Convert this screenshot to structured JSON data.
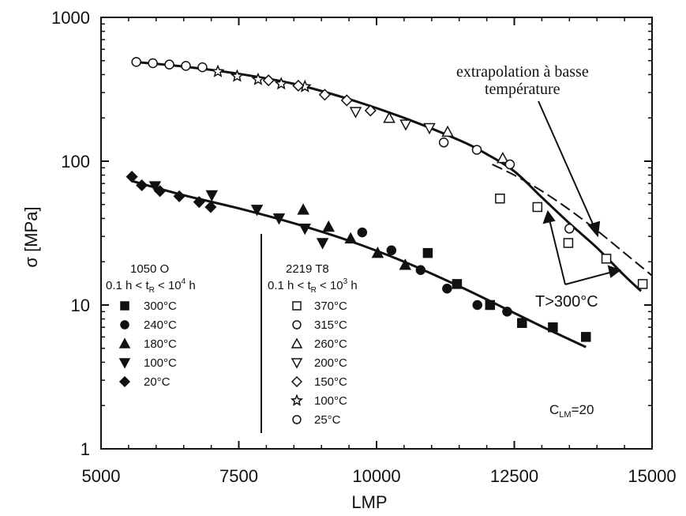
{
  "chart_data": {
    "type": "scatter",
    "title": "",
    "xlabel": "LMP",
    "ylabel": "σ [MPa]",
    "xlim": [
      5000,
      15000
    ],
    "ylim": [
      1,
      1000
    ],
    "y_scale": "log",
    "x_ticks": [
      5000,
      7500,
      10000,
      12500,
      15000
    ],
    "x_tick_labels": [
      "5000",
      "7500",
      "10000",
      "12500",
      "15000"
    ],
    "y_ticks": [
      1,
      10,
      100,
      1000
    ],
    "y_tick_labels": [
      "1",
      "10",
      "100",
      "1000"
    ],
    "legend_1050": {
      "title": "1050 O",
      "condition": {
        "left": "0.1 h < t",
        "sub": "R",
        "right": " < 10",
        "sup": "4",
        "tail": " h"
      },
      "entries": [
        {
          "marker": "square-filled",
          "label": "300°C"
        },
        {
          "marker": "circle-filled",
          "label": "240°C"
        },
        {
          "marker": "triangle-up-filled",
          "label": "180°C"
        },
        {
          "marker": "triangle-down-filled",
          "label": "100°C"
        },
        {
          "marker": "diamond-filled",
          "label": "20°C"
        }
      ]
    },
    "legend_2219": {
      "title": "2219 T8",
      "condition": {
        "left": "0.1 h < t",
        "sub": "R",
        "right": " < 10",
        "sup": "3",
        "tail": " h"
      },
      "entries": [
        {
          "marker": "square-open",
          "label": "370°C"
        },
        {
          "marker": "circle-open",
          "label": "315°C"
        },
        {
          "marker": "triangle-up-open",
          "label": "260°C"
        },
        {
          "marker": "triangle-down-open",
          "label": "200°C"
        },
        {
          "marker": "diamond-open",
          "label": "150°C"
        },
        {
          "marker": "star-open",
          "label": "100°C"
        },
        {
          "marker": "circle-open",
          "label": "25°C"
        }
      ]
    },
    "annotations": {
      "extrapolation_line1": "extrapolation à basse",
      "extrapolation_line2": "température",
      "t_label": "T>300°C",
      "clm_main": "C",
      "clm_sub": "LM",
      "clm_value": "=20"
    },
    "series": [
      {
        "name": "1050 O",
        "points": [
          {
            "m": "diamond-filled",
            "x": 5560,
            "y": 78
          },
          {
            "m": "diamond-filled",
            "x": 5740,
            "y": 68
          },
          {
            "m": "diamond-filled",
            "x": 6070,
            "y": 62
          },
          {
            "m": "diamond-filled",
            "x": 6420,
            "y": 57
          },
          {
            "m": "diamond-filled",
            "x": 6780,
            "y": 52
          },
          {
            "m": "diamond-filled",
            "x": 6990,
            "y": 48
          },
          {
            "m": "triangle-down-filled",
            "x": 5980,
            "y": 67
          },
          {
            "m": "triangle-down-filled",
            "x": 7010,
            "y": 58
          },
          {
            "m": "triangle-down-filled",
            "x": 7830,
            "y": 46
          },
          {
            "m": "triangle-down-filled",
            "x": 8230,
            "y": 40
          },
          {
            "m": "triangle-down-filled",
            "x": 8700,
            "y": 34
          },
          {
            "m": "triangle-down-filled",
            "x": 9020,
            "y": 27
          },
          {
            "m": "triangle-up-filled",
            "x": 8670,
            "y": 46
          },
          {
            "m": "triangle-up-filled",
            "x": 9130,
            "y": 35
          },
          {
            "m": "triangle-up-filled",
            "x": 9530,
            "y": 29
          },
          {
            "m": "triangle-up-filled",
            "x": 10020,
            "y": 23
          },
          {
            "m": "triangle-up-filled",
            "x": 10520,
            "y": 19
          },
          {
            "m": "circle-filled",
            "x": 9740,
            "y": 32
          },
          {
            "m": "circle-filled",
            "x": 10270,
            "y": 24
          },
          {
            "m": "circle-filled",
            "x": 10800,
            "y": 17.5
          },
          {
            "m": "circle-filled",
            "x": 11280,
            "y": 13
          },
          {
            "m": "circle-filled",
            "x": 11830,
            "y": 10
          },
          {
            "m": "circle-filled",
            "x": 12370,
            "y": 9
          },
          {
            "m": "square-filled",
            "x": 10930,
            "y": 23
          },
          {
            "m": "square-filled",
            "x": 11460,
            "y": 14
          },
          {
            "m": "square-filled",
            "x": 12060,
            "y": 10
          },
          {
            "m": "square-filled",
            "x": 12640,
            "y": 7.5
          },
          {
            "m": "square-filled",
            "x": 13200,
            "y": 7
          },
          {
            "m": "square-filled",
            "x": 13800,
            "y": 6
          }
        ]
      },
      {
        "name": "2219 T8",
        "points": [
          {
            "m": "circle-open",
            "x": 5640,
            "y": 490
          },
          {
            "m": "circle-open",
            "x": 5940,
            "y": 480
          },
          {
            "m": "circle-open",
            "x": 6240,
            "y": 470
          },
          {
            "m": "circle-open",
            "x": 6540,
            "y": 460
          },
          {
            "m": "circle-open",
            "x": 6840,
            "y": 450
          },
          {
            "m": "star-open",
            "x": 7120,
            "y": 420
          },
          {
            "m": "star-open",
            "x": 7470,
            "y": 390
          },
          {
            "m": "star-open",
            "x": 7850,
            "y": 370
          },
          {
            "m": "star-open",
            "x": 8270,
            "y": 345
          },
          {
            "m": "star-open",
            "x": 8700,
            "y": 330
          },
          {
            "m": "diamond-open",
            "x": 8040,
            "y": 365
          },
          {
            "m": "diamond-open",
            "x": 8580,
            "y": 335
          },
          {
            "m": "diamond-open",
            "x": 9060,
            "y": 290
          },
          {
            "m": "diamond-open",
            "x": 9460,
            "y": 265
          },
          {
            "m": "diamond-open",
            "x": 9890,
            "y": 225
          },
          {
            "m": "triangle-down-open",
            "x": 9620,
            "y": 220
          },
          {
            "m": "triangle-down-open",
            "x": 10530,
            "y": 180
          },
          {
            "m": "triangle-down-open",
            "x": 10960,
            "y": 170
          },
          {
            "m": "triangle-up-open",
            "x": 10230,
            "y": 200
          },
          {
            "m": "triangle-up-open",
            "x": 11290,
            "y": 160
          },
          {
            "m": "triangle-up-open",
            "x": 12290,
            "y": 105
          },
          {
            "m": "circle-open",
            "x": 11220,
            "y": 135
          },
          {
            "m": "circle-open",
            "x": 11820,
            "y": 120
          },
          {
            "m": "circle-open",
            "x": 12420,
            "y": 95
          },
          {
            "m": "circle-open",
            "x": 13500,
            "y": 34
          },
          {
            "m": "square-open",
            "x": 12240,
            "y": 55
          },
          {
            "m": "square-open",
            "x": 12920,
            "y": 48
          },
          {
            "m": "square-open",
            "x": 13480,
            "y": 27
          },
          {
            "m": "square-open",
            "x": 14170,
            "y": 21
          },
          {
            "m": "square-open",
            "x": 14830,
            "y": 14
          }
        ]
      }
    ],
    "fit_curves": [
      {
        "style": "solid",
        "x": [
          5600,
          6500,
          7500,
          8500,
          9500,
          10500,
          11500,
          12000,
          12500,
          13000,
          13500,
          14000,
          14500,
          14800
        ],
        "y": [
          490,
          455,
          405,
          345,
          270,
          200,
          140,
          112,
          85,
          56,
          37,
          25,
          16,
          12.5
        ]
      },
      {
        "style": "dashed",
        "x": [
          12100,
          12500,
          13000,
          13500,
          14000,
          14500,
          15000
        ],
        "y": [
          95,
          80,
          62,
          46,
          33,
          23,
          16
        ]
      },
      {
        "style": "solid",
        "x": [
          5550,
          6500,
          7500,
          8500,
          9500,
          10500,
          11500,
          12500,
          13100,
          13800
        ],
        "y": [
          73,
          58,
          47,
          37,
          28,
          20,
          13.5,
          8.8,
          6.8,
          5.1
        ]
      }
    ]
  }
}
